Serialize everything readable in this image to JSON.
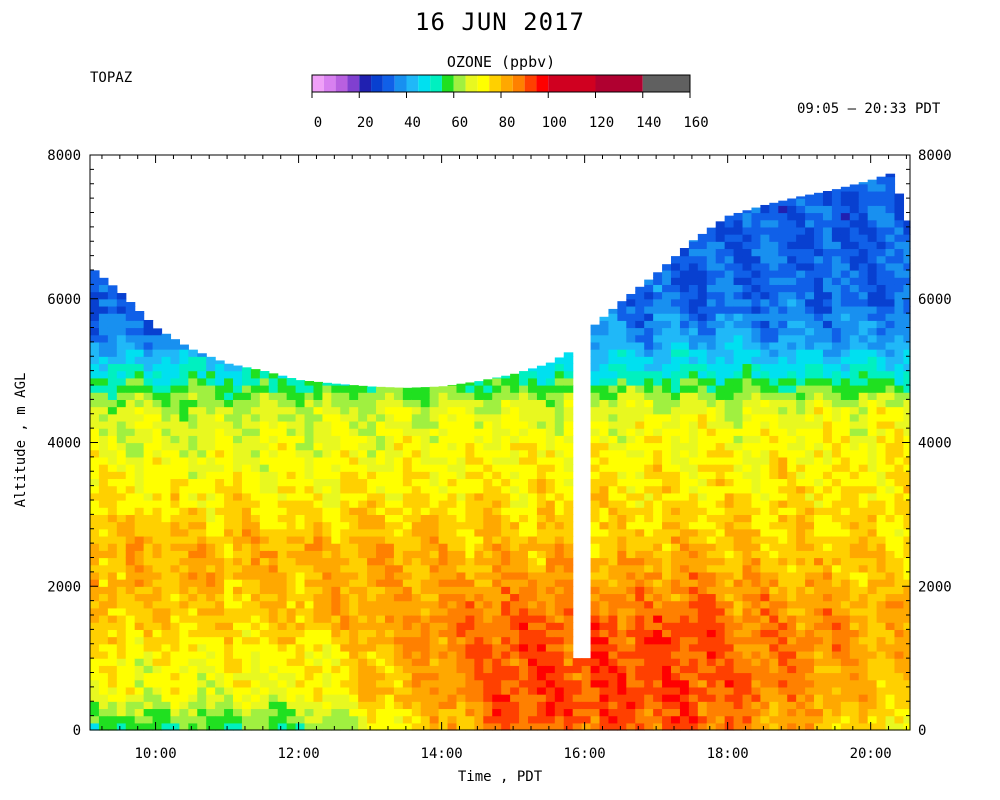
{
  "header": {
    "title": "16 JUN 2017",
    "instrument": "TOPAZ",
    "time_range": "09:05 – 20:33 PDT"
  },
  "colorbar": {
    "title": "OZONE (ppbv)",
    "ticks": [
      "0",
      "20",
      "40",
      "60",
      "80",
      "100",
      "120",
      "140",
      "160"
    ],
    "levels": [
      0,
      5,
      10,
      15,
      20,
      25,
      30,
      35,
      40,
      45,
      50,
      55,
      60,
      65,
      70,
      75,
      80,
      85,
      90,
      95,
      100,
      120,
      140,
      160
    ],
    "colors": [
      "#ffc8ff",
      "#f0a0f8",
      "#d880f0",
      "#b860e0",
      "#8040d0",
      "#2020b0",
      "#0840d0",
      "#1060e8",
      "#1890f0",
      "#20b8f8",
      "#00e0f0",
      "#00f0c0",
      "#20e020",
      "#a0f040",
      "#e8f820",
      "#ffff00",
      "#ffd000",
      "#ffa800",
      "#ff8000",
      "#ff4000",
      "#ff0000",
      "#d00020",
      "#b00030",
      "#606060",
      "#909090",
      "#c0c0c0"
    ]
  },
  "chart_data": {
    "type": "heatmap",
    "title": "16 JUN 2017",
    "variable": "OZONE (ppbv)",
    "xlabel": "Time , PDT",
    "ylabel": "Altitude , m AGL",
    "x_ticks": [
      "10:00",
      "12:00",
      "14:00",
      "16:00",
      "18:00",
      "20:00"
    ],
    "x_tick_hours": [
      10,
      12,
      14,
      16,
      18,
      20
    ],
    "xlim_hours": [
      9.083,
      20.55
    ],
    "y_ticks": [
      "0",
      "2000",
      "4000",
      "6000",
      "8000"
    ],
    "y_tick_values": [
      0,
      2000,
      4000,
      6000,
      8000
    ],
    "ylim": [
      0,
      8000
    ],
    "data_gap": {
      "start_hour": 15.85,
      "end_hour": 16.1,
      "below_altitude_m": 1000
    },
    "top_of_data_profile": [
      {
        "hour": 9.08,
        "alt": 6450
      },
      {
        "hour": 9.5,
        "alt": 6100
      },
      {
        "hour": 10.0,
        "alt": 5600
      },
      {
        "hour": 10.5,
        "alt": 5300
      },
      {
        "hour": 11.0,
        "alt": 5100
      },
      {
        "hour": 11.5,
        "alt": 5000
      },
      {
        "hour": 12.0,
        "alt": 4870
      },
      {
        "hour": 12.5,
        "alt": 4820
      },
      {
        "hour": 13.0,
        "alt": 4780
      },
      {
        "hour": 13.5,
        "alt": 4760
      },
      {
        "hour": 14.0,
        "alt": 4780
      },
      {
        "hour": 14.5,
        "alt": 4850
      },
      {
        "hour": 15.0,
        "alt": 4950
      },
      {
        "hour": 15.5,
        "alt": 5100
      },
      {
        "hour": 15.85,
        "alt": 5300
      },
      {
        "hour": 16.1,
        "alt": 5600
      },
      {
        "hour": 16.5,
        "alt": 5950
      },
      {
        "hour": 17.0,
        "alt": 6350
      },
      {
        "hour": 17.5,
        "alt": 6800
      },
      {
        "hour": 18.0,
        "alt": 7150
      },
      {
        "hour": 18.5,
        "alt": 7300
      },
      {
        "hour": 19.0,
        "alt": 7420
      },
      {
        "hour": 19.5,
        "alt": 7520
      },
      {
        "hour": 20.0,
        "alt": 7650
      },
      {
        "hour": 20.3,
        "alt": 7750
      },
      {
        "hour": 20.55,
        "alt": 7000
      }
    ],
    "ozone_profile_ppbv_by_altitude": [
      {
        "alt": 0,
        "morning": 55,
        "afternoon": 90
      },
      {
        "alt": 500,
        "morning": 70,
        "afternoon": 92
      },
      {
        "alt": 1000,
        "morning": 72,
        "afternoon": 92
      },
      {
        "alt": 1500,
        "morning": 78,
        "afternoon": 90
      },
      {
        "alt": 2000,
        "morning": 80,
        "afternoon": 85
      },
      {
        "alt": 2500,
        "morning": 82,
        "afternoon": 80
      },
      {
        "alt": 3000,
        "morning": 75,
        "afternoon": 76
      },
      {
        "alt": 3500,
        "morning": 72,
        "afternoon": 74
      },
      {
        "alt": 4000,
        "morning": 68,
        "afternoon": 72
      },
      {
        "alt": 4500,
        "morning": 65,
        "afternoon": 68
      },
      {
        "alt": 5000,
        "morning": 50,
        "afternoon": 50
      },
      {
        "alt": 5500,
        "morning": 35,
        "afternoon": 38
      },
      {
        "alt": 6000,
        "morning": 30,
        "afternoon": 33
      },
      {
        "alt": 7000,
        "morning": 30,
        "afternoon": 32
      },
      {
        "alt": 8000,
        "morning": 30,
        "afternoon": 32
      }
    ]
  }
}
